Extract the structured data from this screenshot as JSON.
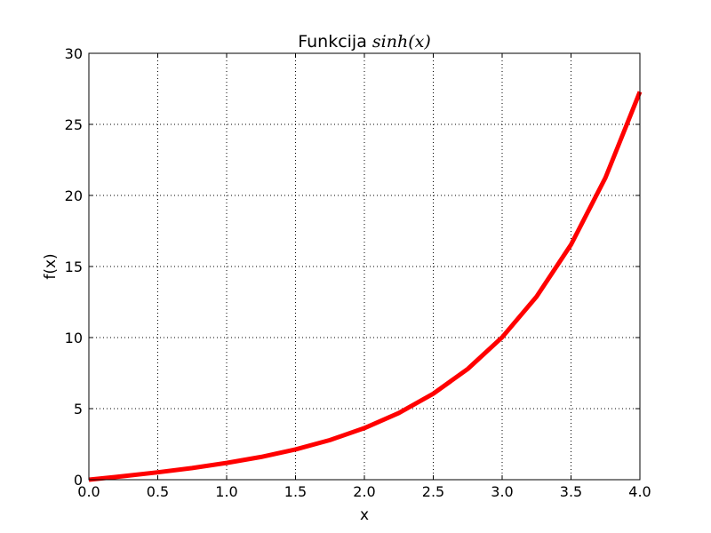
{
  "chart_data": {
    "type": "line",
    "title": {
      "text": "Funkcija ",
      "math": "sinh(x)"
    },
    "xlabel": "x",
    "ylabel": "f(x)",
    "xlim": [
      0,
      4
    ],
    "ylim": [
      0,
      30
    ],
    "x_ticks": [
      0,
      0.5,
      1,
      1.5,
      2,
      2.5,
      3,
      3.5,
      4
    ],
    "x_tick_labels": [
      "0.0",
      "0.5",
      "1.0",
      "1.5",
      "2.0",
      "2.5",
      "3.0",
      "3.5",
      "4.0"
    ],
    "y_ticks": [
      0,
      5,
      10,
      15,
      20,
      25,
      30
    ],
    "y_tick_labels": [
      "0",
      "5",
      "10",
      "15",
      "20",
      "25",
      "30"
    ],
    "grid": true,
    "series": [
      {
        "function": "sinh(x)",
        "color": "#ff0000",
        "x": [
          0,
          0.25,
          0.5,
          0.75,
          1,
          1.25,
          1.5,
          1.75,
          2,
          2.25,
          2.5,
          2.75,
          3,
          3.25,
          3.5,
          3.75,
          4
        ],
        "y": [
          0,
          0.25,
          0.52,
          0.82,
          1.18,
          1.6,
          2.13,
          2.79,
          3.63,
          4.69,
          6.05,
          7.79,
          10.02,
          12.88,
          16.54,
          21.25,
          27.29
        ]
      }
    ]
  }
}
